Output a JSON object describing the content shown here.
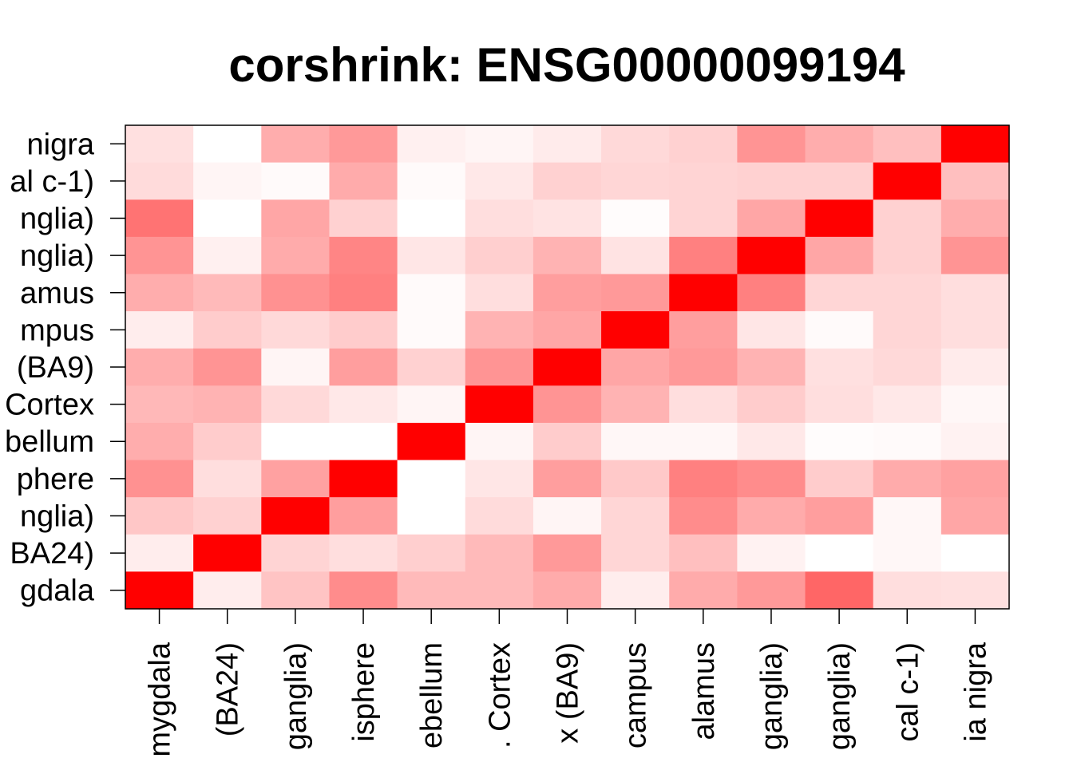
{
  "chart_data": {
    "type": "heatmap",
    "title": "corshrink: ENSG00000099194",
    "color_low": "#ffffff",
    "color_high": "#ff0000",
    "value_range": [
      0,
      1
    ],
    "x_labels": [
      "mygdala",
      "(BA24)",
      "ganglia)",
      "isphere",
      "ebellum",
      ". Cortex",
      "x (BA9)",
      "campus",
      "alamus",
      "ganglia)",
      "ganglia)",
      "cal c-1)",
      "ia nigra"
    ],
    "y_labels": [
      "nigra",
      "al c-1)",
      "nglia)",
      "nglia)",
      "amus",
      "mpus",
      "(BA9)",
      "Cortex",
      "bellum",
      "phere",
      "nglia)",
      "BA24)",
      "gdala"
    ],
    "rows": [
      [
        0.12,
        0.0,
        0.32,
        0.4,
        0.06,
        0.04,
        0.08,
        0.15,
        0.18,
        0.42,
        0.32,
        0.25,
        1.0
      ],
      [
        0.14,
        0.04,
        0.02,
        0.33,
        0.02,
        0.09,
        0.18,
        0.16,
        0.17,
        0.18,
        0.18,
        1.0,
        0.25
      ],
      [
        0.55,
        0.0,
        0.35,
        0.18,
        0.0,
        0.13,
        0.11,
        0.01,
        0.17,
        0.35,
        1.0,
        0.18,
        0.32
      ],
      [
        0.42,
        0.06,
        0.33,
        0.48,
        0.1,
        0.19,
        0.3,
        0.11,
        0.5,
        1.0,
        0.35,
        0.18,
        0.42
      ],
      [
        0.32,
        0.27,
        0.43,
        0.5,
        0.02,
        0.13,
        0.38,
        0.4,
        1.0,
        0.5,
        0.16,
        0.16,
        0.13
      ],
      [
        0.07,
        0.2,
        0.15,
        0.2,
        0.02,
        0.3,
        0.35,
        1.0,
        0.38,
        0.1,
        0.02,
        0.16,
        0.13
      ],
      [
        0.32,
        0.42,
        0.04,
        0.38,
        0.18,
        0.42,
        1.0,
        0.35,
        0.4,
        0.3,
        0.12,
        0.15,
        0.08
      ],
      [
        0.28,
        0.3,
        0.15,
        0.09,
        0.04,
        1.0,
        0.42,
        0.3,
        0.13,
        0.2,
        0.13,
        0.09,
        0.03
      ],
      [
        0.32,
        0.2,
        0.0,
        0.0,
        1.0,
        0.04,
        0.2,
        0.03,
        0.03,
        0.09,
        0.01,
        0.02,
        0.05
      ],
      [
        0.43,
        0.13,
        0.37,
        1.0,
        0.0,
        0.1,
        0.38,
        0.21,
        0.5,
        0.45,
        0.2,
        0.33,
        0.37
      ],
      [
        0.22,
        0.18,
        1.0,
        0.38,
        0.0,
        0.14,
        0.04,
        0.16,
        0.45,
        0.33,
        0.38,
        0.03,
        0.35
      ],
      [
        0.07,
        1.0,
        0.17,
        0.13,
        0.19,
        0.27,
        0.4,
        0.16,
        0.25,
        0.05,
        0.0,
        0.03,
        0.0
      ],
      [
        1.0,
        0.07,
        0.23,
        0.45,
        0.27,
        0.27,
        0.33,
        0.07,
        0.33,
        0.4,
        0.6,
        0.13,
        0.12
      ]
    ]
  }
}
